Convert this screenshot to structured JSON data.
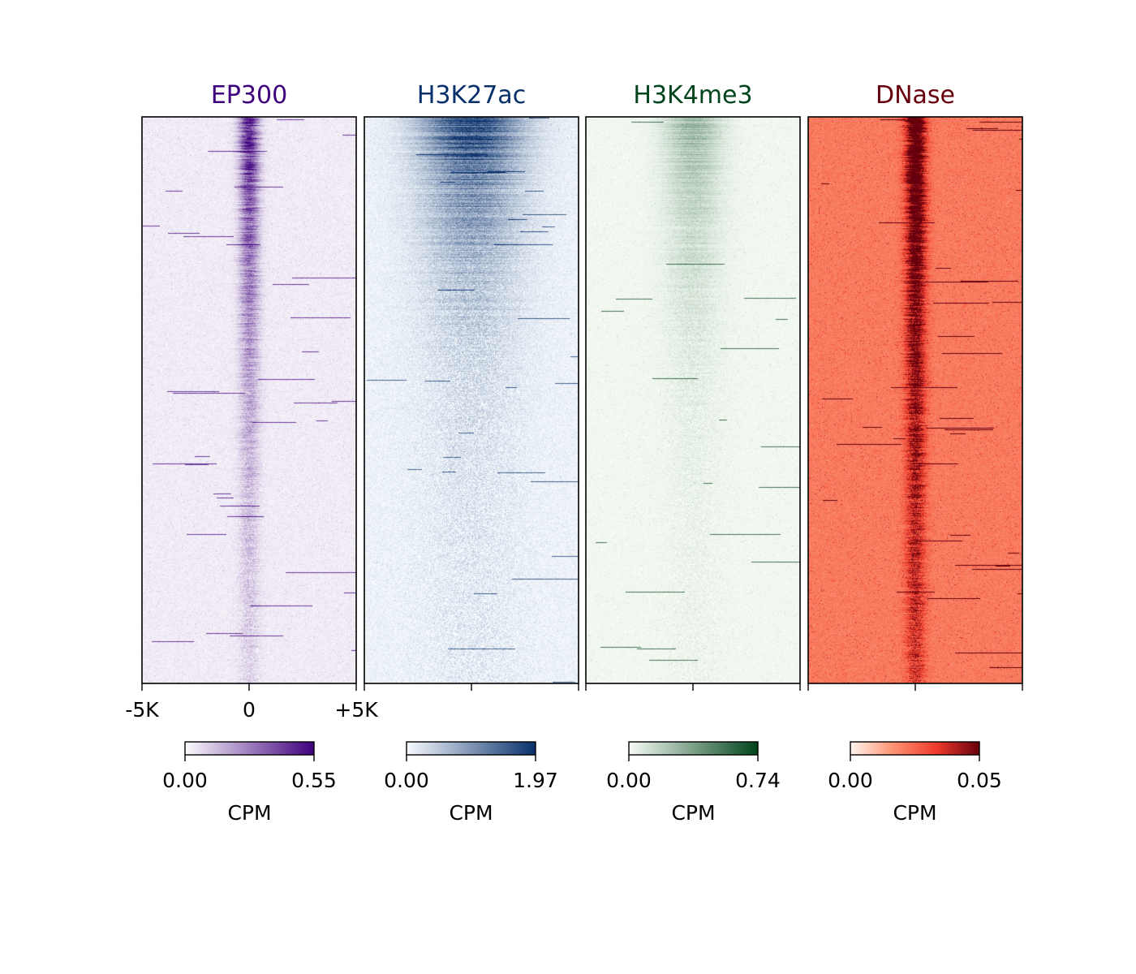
{
  "chart_data": {
    "type": "heatmap",
    "description_of_axes": "",
    "x_tick_labels": [
      "-5K",
      "0",
      "+5K"
    ],
    "x_range_bp": [
      -5000,
      5000
    ],
    "panels": [
      {
        "title": "EP300",
        "title_color": "#3f007d",
        "colormap": [
          "#fcfbfd",
          "#3f007d"
        ],
        "colorbar": {
          "min_label": "0.00",
          "max_label": "0.55",
          "unit": "CPM",
          "vmin": 0.0,
          "vmax": 0.55
        },
        "profile": {
          "peak_width": 0.03,
          "flank_level": 0.06,
          "peak_level": 0.85,
          "decay": 1.1,
          "noise": 0.22,
          "streak_rate": 0.03
        }
      },
      {
        "title": "H3K27ac",
        "title_color": "#08306b",
        "colormap": [
          "#f7fbff",
          "#08306b"
        ],
        "colorbar": {
          "min_label": "0.00",
          "max_label": "1.97",
          "unit": "CPM",
          "vmin": 0.0,
          "vmax": 1.97
        },
        "profile": {
          "peak_width": 0.16,
          "flank_level": 0.04,
          "peak_level": 0.9,
          "decay": 2.4,
          "noise": 0.28,
          "streak_rate": 0.05
        }
      },
      {
        "title": "H3K4me3",
        "title_color": "#00441b",
        "colormap": [
          "#f7fcf5",
          "#00441b"
        ],
        "colorbar": {
          "min_label": "0.00",
          "max_label": "0.74",
          "unit": "CPM",
          "vmin": 0.0,
          "vmax": 0.74
        },
        "profile": {
          "peak_width": 0.09,
          "flank_level": 0.02,
          "peak_level": 0.35,
          "decay": 2.0,
          "noise": 0.12,
          "streak_rate": 0.035
        }
      },
      {
        "title": "DNase",
        "title_color": "#67000d",
        "colormap": [
          "#fff5f0",
          "#fc9272",
          "#ef3b2c",
          "#67000d"
        ],
        "colorbar": {
          "min_label": "0.00",
          "max_label": "0.05",
          "unit": "CPM",
          "vmin": 0.0,
          "vmax": 0.05
        },
        "profile": {
          "peak_width": 0.03,
          "flank_level": 0.42,
          "peak_level": 0.95,
          "decay": 0.6,
          "noise": 0.35,
          "streak_rate": 0.05
        }
      }
    ]
  }
}
